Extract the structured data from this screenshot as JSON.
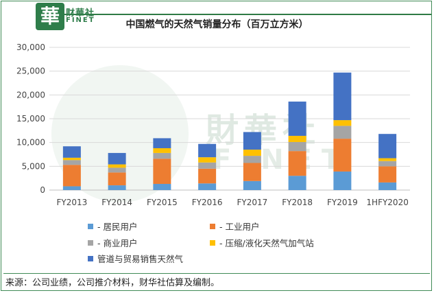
{
  "brand": {
    "logo_char": "華",
    "name_cn": "财華社",
    "name_en": "FINET"
  },
  "watermark": {
    "text_cn": "財華社",
    "text_en": "FINET"
  },
  "source": "来源：公司业绩，公司推介材料，财华社估算及编制。",
  "colors": {
    "frame": "#3f8a55",
    "series": [
      "#5b9bd5",
      "#ed7d31",
      "#a5a5a5",
      "#ffc000",
      "#4472c4"
    ]
  },
  "chart_data": {
    "type": "bar",
    "stacked": true,
    "title": "中国燃气的天然气销量分布（百万立方米）",
    "categories": [
      "FY2013",
      "FY2014",
      "FY2015",
      "FY2016",
      "FY2017",
      "FY2018",
      "FY2019",
      "1HFY2020"
    ],
    "yticks": [
      "0",
      "5,000",
      "10,000",
      "15,000",
      "20,000",
      "25,000",
      "30,000"
    ],
    "ylim": [
      0,
      30000
    ],
    "grid": true,
    "legend_position": "bottom",
    "series": [
      {
        "name": "- 居民用户",
        "values": [
          800,
          1000,
          1300,
          1400,
          1900,
          3000,
          3900,
          1600
        ]
      },
      {
        "name": "- 工业用户",
        "values": [
          4500,
          2700,
          5300,
          3100,
          3800,
          5200,
          6900,
          3400
        ]
      },
      {
        "name": "- 商业用户",
        "values": [
          1000,
          1000,
          1200,
          1300,
          1500,
          1900,
          2700,
          1100
        ]
      },
      {
        "name": "- 压缩/液化天然气加气站",
        "values": [
          500,
          700,
          1000,
          1100,
          1300,
          1300,
          1200,
          600
        ]
      },
      {
        "name": "管道与贸易销售天然气",
        "values": [
          2400,
          2400,
          2100,
          2800,
          3700,
          7200,
          10000,
          5100
        ]
      }
    ]
  }
}
